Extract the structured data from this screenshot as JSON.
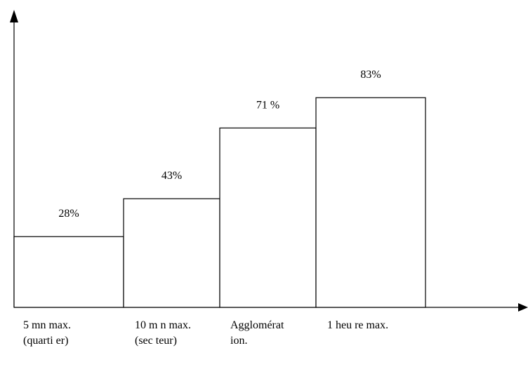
{
  "chart_data": {
    "type": "bar",
    "categories": [
      [
        "5 mn max.",
        "(quarti er)"
      ],
      [
        "10 m n max.",
        "(sec teur)"
      ],
      [
        "Agglomérat",
        "ion."
      ],
      [
        "1 heu re max."
      ]
    ],
    "values": [
      28,
      43,
      71,
      83
    ],
    "value_labels": [
      "28%",
      "43%",
      "71 %",
      "83%"
    ],
    "title": "",
    "xlabel": "",
    "ylabel": "",
    "ylim": [
      0,
      100
    ],
    "grid": false,
    "bar_fill": "#ffffff",
    "stroke_color": "#000000"
  }
}
